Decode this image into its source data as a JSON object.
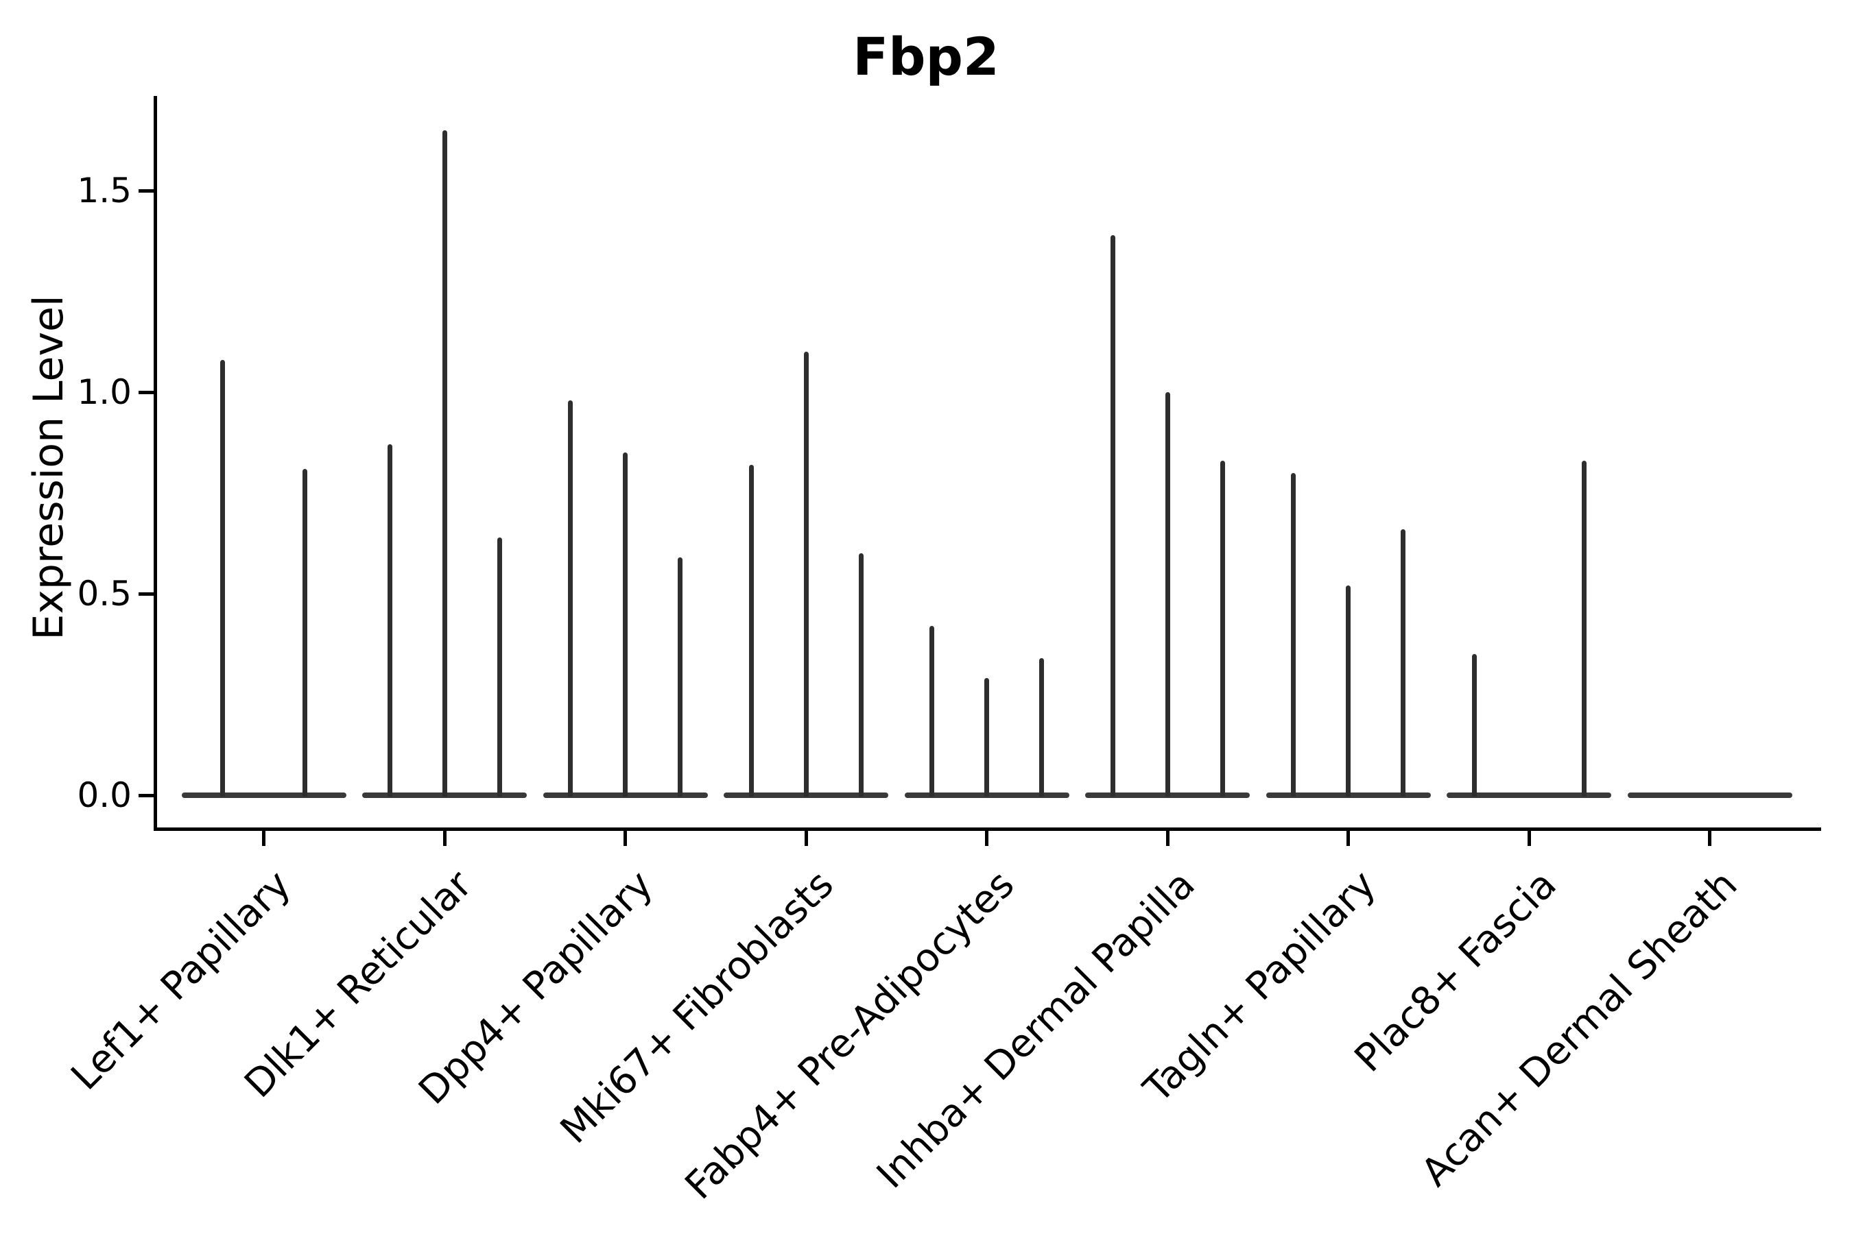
{
  "title": "Fbp2",
  "y_axis": {
    "label": "Expression Level",
    "tick_labels": [
      "0.0",
      "0.5",
      "1.0",
      "1.5"
    ]
  },
  "colors": {
    "background": "#ffffff",
    "axis": "#000000",
    "text": "#000000",
    "violin_spike": "#2e2e2e",
    "violin_baseline": "#3a3a3a"
  },
  "chart_data": {
    "type": "violin",
    "title": "Fbp2",
    "xlabel": "",
    "ylabel": "Expression Level",
    "yticks": [
      0.0,
      0.5,
      1.0,
      1.5
    ],
    "ylim": [
      -0.08,
      1.73
    ],
    "grid": false,
    "legend_position": "none",
    "x_tick_rotation_deg": 45,
    "categories": [
      "Lef1+ Papillary",
      "Dlk1+ Reticular",
      "Dpp4+ Papillary",
      "Mki67+ Fibroblasts",
      "Fabp4+ Pre-Adipocytes",
      "Inhba+ Dermal Papilla",
      "Tagln+ Papillary",
      "Plac8+ Fascia",
      "Acan+ Dermal Sheath"
    ],
    "series": [
      {
        "category": "Lef1+ Papillary",
        "violin_peaks": [
          1.08,
          0.81
        ]
      },
      {
        "category": "Dlk1+ Reticular",
        "violin_peaks": [
          0.87,
          1.65,
          0.64
        ]
      },
      {
        "category": "Dpp4+ Papillary",
        "violin_peaks": [
          0.98,
          0.85,
          0.59
        ]
      },
      {
        "category": "Mki67+ Fibroblasts",
        "violin_peaks": [
          0.82,
          1.1,
          0.6
        ]
      },
      {
        "category": "Fabp4+ Pre-Adipocytes",
        "violin_peaks": [
          0.42,
          0.29,
          0.34
        ]
      },
      {
        "category": "Inhba+ Dermal Papilla",
        "violin_peaks": [
          1.39,
          1.0,
          0.83
        ]
      },
      {
        "category": "Tagln+ Papillary",
        "violin_peaks": [
          0.8,
          0.52,
          0.66
        ]
      },
      {
        "category": "Plac8+ Fascia",
        "violin_peaks": [
          0.35,
          0.0,
          0.83
        ]
      },
      {
        "category": "Acan+ Dermal Sheath",
        "violin_peaks": [
          0.0,
          0.0,
          0.0
        ]
      }
    ]
  }
}
